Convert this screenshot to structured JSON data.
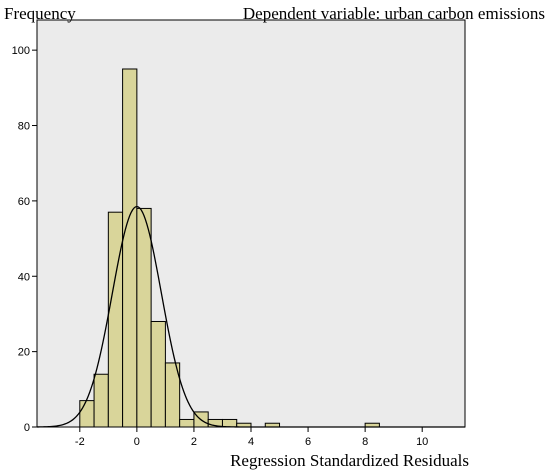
{
  "chart_data": {
    "type": "bar",
    "subtype": "histogram",
    "title": "Dependent variable: urban carbon emissions",
    "ylabel": "Frequency",
    "xlabel": "Regression Standardized Residuals",
    "xlim": [
      -3.5,
      11.5
    ],
    "ylim": [
      0,
      108
    ],
    "x_ticks": [
      -2,
      0,
      2,
      4,
      6,
      8,
      10
    ],
    "x_tick_labels": [
      "-2",
      "0",
      "2",
      "4",
      "6",
      "8",
      "10"
    ],
    "y_ticks": [
      0,
      20,
      40,
      60,
      80,
      100
    ],
    "y_tick_labels": [
      "0",
      "20",
      "40",
      "60",
      "80",
      "100"
    ],
    "bin_width": 0.5,
    "bins": [
      {
        "start": -2.0,
        "count": 7
      },
      {
        "start": -1.5,
        "count": 14
      },
      {
        "start": -1.0,
        "count": 57
      },
      {
        "start": -0.5,
        "count": 95
      },
      {
        "start": 0.0,
        "count": 58
      },
      {
        "start": 0.5,
        "count": 28
      },
      {
        "start": 1.0,
        "count": 17
      },
      {
        "start": 1.5,
        "count": 2
      },
      {
        "start": 2.0,
        "count": 4
      },
      {
        "start": 2.5,
        "count": 2
      },
      {
        "start": 3.0,
        "count": 2
      },
      {
        "start": 3.5,
        "count": 1
      },
      {
        "start": 4.5,
        "count": 1
      },
      {
        "start": 8.0,
        "count": 1
      }
    ],
    "normal_curve": {
      "mean": 0.0,
      "sd": 0.86,
      "peak": 58.5
    },
    "grid": false,
    "background_color": "#ebebeb",
    "bar_color": "#d9d59a"
  }
}
